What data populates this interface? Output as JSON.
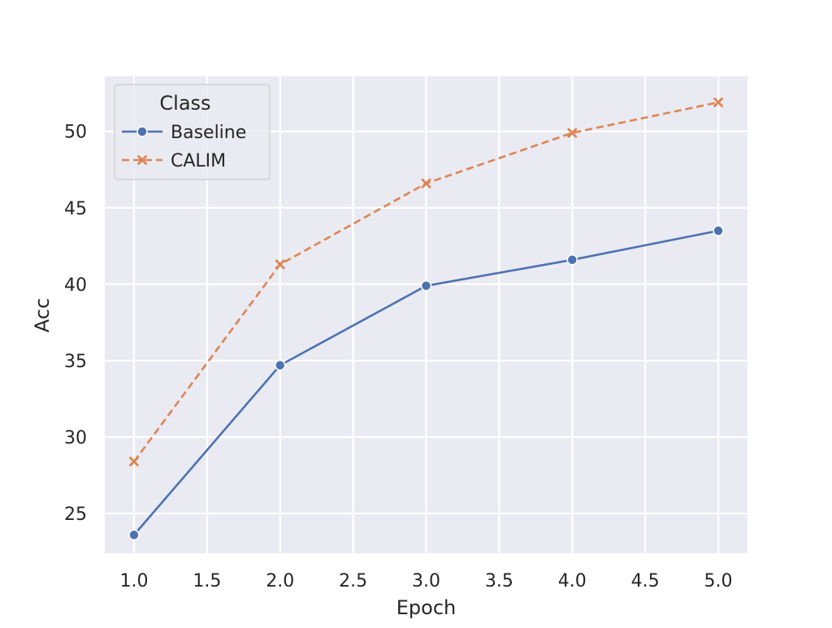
{
  "chart_data": {
    "type": "line",
    "title": "",
    "xlabel": "Epoch",
    "ylabel": "Acc",
    "x": [
      1,
      2,
      3,
      4,
      5
    ],
    "xlim": [
      0.8,
      5.2
    ],
    "ylim": [
      22.4,
      53.6
    ],
    "xticks": [
      "1.0",
      "1.5",
      "2.0",
      "2.5",
      "3.0",
      "3.5",
      "4.0",
      "4.5",
      "5.0"
    ],
    "yticks": [
      "25",
      "30",
      "35",
      "40",
      "45",
      "50"
    ],
    "grid": true,
    "legend": {
      "title": "Class",
      "placement": "upper-left"
    },
    "series": [
      {
        "name": "Baseline",
        "values": [
          23.6,
          34.7,
          39.9,
          41.6,
          43.5
        ],
        "color": "#4c72b0",
        "marker": "circle",
        "dash": "solid"
      },
      {
        "name": "CALIM",
        "values": [
          28.4,
          41.3,
          46.6,
          49.9,
          51.9
        ],
        "color": "#dd8452",
        "marker": "x",
        "dash": "dashed"
      }
    ],
    "colors": {
      "plot_background": "#eaeaf2",
      "grid": "#ffffff"
    }
  }
}
